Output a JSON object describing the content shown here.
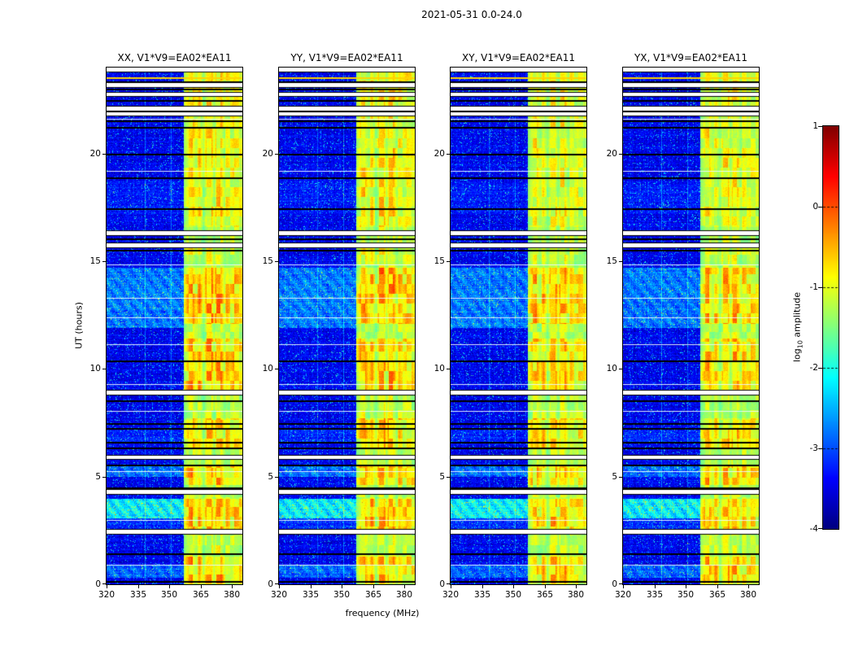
{
  "figure": {
    "title": "2021-05-31 0.0-24.0"
  },
  "chart_data": {
    "type": "heatmap",
    "subtype": "dynamic-spectrum",
    "title": "2021-05-31 0.0-24.0",
    "xlabel": "frequency (MHz)",
    "ylabel": "UT (hours)",
    "x_range_mhz": [
      320,
      385
    ],
    "x_ticks": [
      320,
      335,
      350,
      365,
      380
    ],
    "y_range_hours": [
      0,
      24
    ],
    "y_ticks": [
      0,
      5,
      10,
      15,
      20
    ],
    "colormap": "jet",
    "background_level_log10": -3.4,
    "panels": [
      {
        "label": "XX, V1*V9=EA02*EA11",
        "pol": "XX",
        "band_gain": 1.0,
        "seed": 11
      },
      {
        "label": "YY, V1*V9=EA02*EA11",
        "pol": "YY",
        "band_gain": 1.0,
        "seed": 23
      },
      {
        "label": "XY, V1*V9=EA02*EA11",
        "pol": "XY",
        "band_gain": 0.92,
        "seed": 37
      },
      {
        "label": "YX, V1*V9=EA02*EA11",
        "pol": "YX",
        "band_gain": 0.94,
        "seed": 51
      }
    ],
    "colorbar": {
      "label": "log10 amplitude",
      "label_prefix": "log",
      "label_sub": "10",
      "label_suffix": " amplitude",
      "range": [
        -4,
        1
      ],
      "ticks": [
        1,
        0,
        -1,
        -2,
        -3,
        -4
      ],
      "dashed_gridline_values": [
        0,
        -1,
        -2,
        -3
      ]
    },
    "rfi_band": {
      "freq_mhz": [
        357,
        385
      ],
      "base_activity": 0.62,
      "faint_lines_mhz": [
        338.4,
        350.9
      ],
      "channel_envelope": [
        [
          357,
          0.5
        ],
        [
          359,
          0.85
        ],
        [
          361,
          1
        ],
        [
          363,
          0.65
        ],
        [
          364.5,
          1
        ],
        [
          366.5,
          0.45
        ],
        [
          368,
          0.95
        ],
        [
          370.5,
          1
        ],
        [
          371.5,
          0.55
        ],
        [
          372.5,
          0.95
        ],
        [
          375,
          1
        ],
        [
          376.5,
          0.55
        ],
        [
          377.5,
          0.9
        ],
        [
          379.5,
          0.7
        ],
        [
          381,
          0.85
        ],
        [
          385,
          0.7
        ]
      ]
    },
    "time_features": {
      "gap_half_width_hours": 0.09,
      "gaps": [
        23.9,
        23.2,
        22.75,
        22.1,
        21.85,
        16.3,
        15.75,
        8.9,
        5.9,
        4.3,
        2.45
      ],
      "black_lines": [
        23.35,
        23.0,
        22.5,
        21.55,
        21.25,
        20.0,
        18.9,
        17.45,
        16.05,
        15.55,
        10.4,
        8.55,
        7.5,
        7.25,
        6.6,
        6.35,
        5.55,
        4.5,
        1.45,
        0.15
      ],
      "white_lines": [
        21.6,
        19.2,
        14.85,
        13.3,
        12.4,
        11.15,
        9.3,
        8.05,
        5.25,
        3.0,
        0.9
      ],
      "yellow_lines": [
        23.5
      ],
      "bright_bands": [
        [
          11.9,
          14.7,
          0.55
        ],
        [
          3.05,
          3.95,
          1.15
        ],
        [
          5.0,
          5.5,
          0.5
        ],
        [
          0.3,
          0.9,
          0.45
        ],
        [
          2.5,
          3.05,
          0.3
        ],
        [
          17.2,
          18.7,
          0.2
        ],
        [
          6.6,
          7.2,
          0.25
        ]
      ],
      "band_strong_hours": [
        [
          16.6,
          24.0,
          0.82
        ],
        [
          15.0,
          15.6,
          0.7
        ],
        [
          12.1,
          14.7,
          1.05
        ],
        [
          8.9,
          11.4,
          1.0
        ],
        [
          6.3,
          7.7,
          0.95
        ],
        [
          4.6,
          5.5,
          1.05
        ],
        [
          2.5,
          3.95,
          1.0
        ],
        [
          0.05,
          1.3,
          1.0
        ]
      ]
    }
  }
}
